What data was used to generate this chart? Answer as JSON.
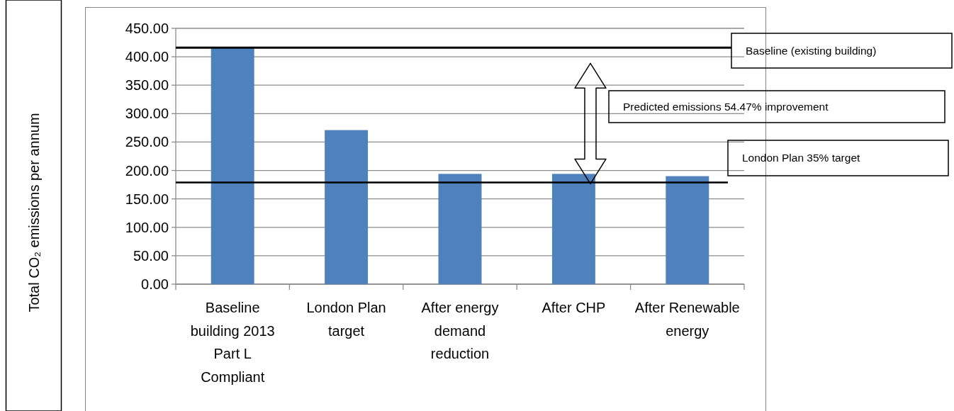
{
  "chart_data": {
    "type": "bar",
    "categories": [
      "Baseline building  2013 Part L Compliant",
      "London Plan target",
      "After energy demand reduction",
      "After CHP",
      "After Renewable energy"
    ],
    "values": [
      417,
      271,
      194,
      194,
      190
    ],
    "color": "#4f81bd",
    "ylim": [
      0,
      450
    ],
    "yticks": [
      {
        "value": 0,
        "label": "0.00"
      },
      {
        "value": 50,
        "label": "50.00"
      },
      {
        "value": 100,
        "label": "100.00"
      },
      {
        "value": 150,
        "label": "150.00"
      },
      {
        "value": 200,
        "label": "200.00"
      },
      {
        "value": 250,
        "label": "250.00"
      },
      {
        "value": 300,
        "label": "300.00"
      },
      {
        "value": 350,
        "label": "350.00"
      },
      {
        "value": 400,
        "label": "400.00"
      },
      {
        "value": 450,
        "label": "450.00"
      }
    ],
    "grid": "y",
    "ref_lines": [
      {
        "axis": "y",
        "value": 416,
        "label": "Baseline (existing building)",
        "color": "#000000"
      },
      {
        "axis": "y",
        "value": 179,
        "label": "London Plan 35% target",
        "color": "#000000"
      }
    ],
    "annotations": [
      "Total CO₂ emissions per annum",
      "Predicted emissions 54.47% improvement"
    ]
  }
}
